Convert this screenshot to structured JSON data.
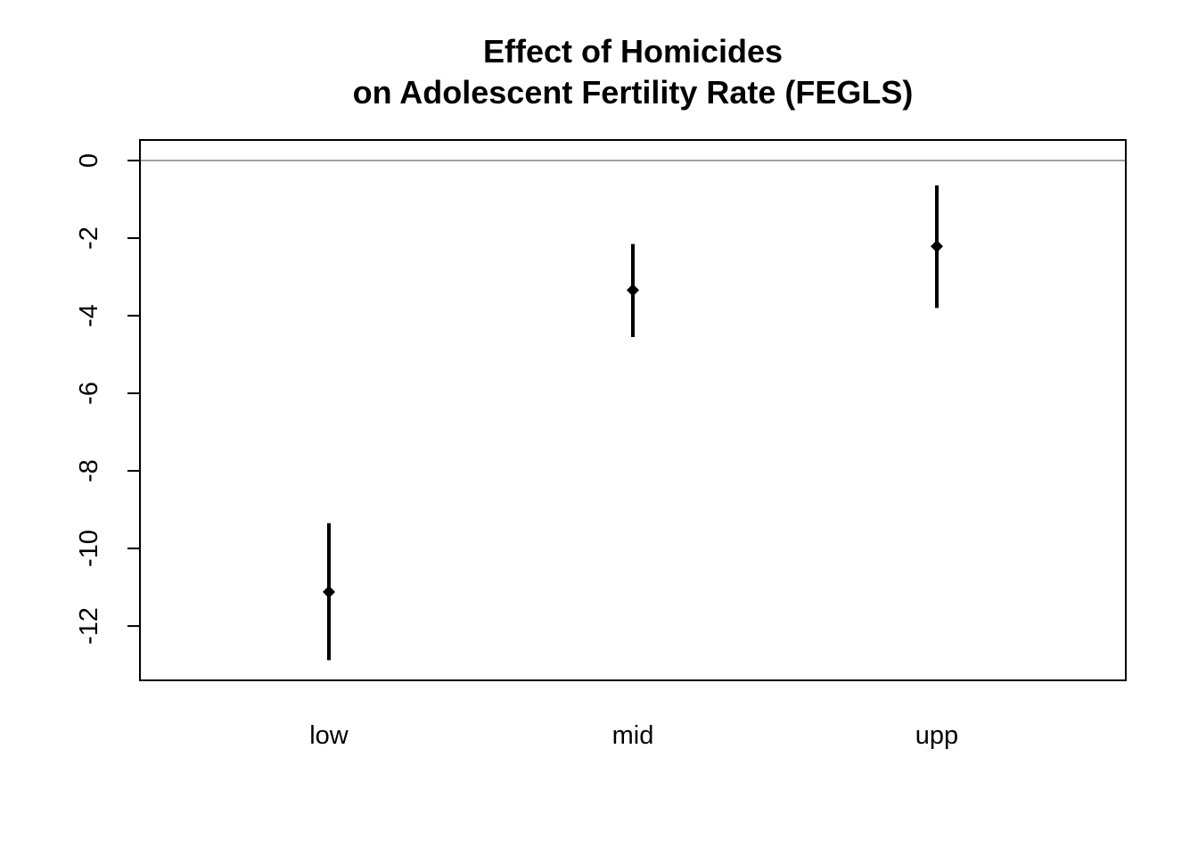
{
  "chart_data": {
    "type": "scatter",
    "title": [
      "Effect of Homicides",
      "on Adolescent Fertility Rate (FEGLS)"
    ],
    "xlabel": "",
    "ylabel": "",
    "categories": [
      "low",
      "mid",
      "upp"
    ],
    "estimates": [
      -11.12,
      -3.34,
      -2.21
    ],
    "lower": [
      -12.88,
      -4.55,
      -3.8
    ],
    "upper": [
      -9.35,
      -2.15,
      -0.64
    ],
    "ylim": [
      -13.4,
      0.53
    ],
    "yticks": [
      0,
      -2,
      -4,
      -6,
      -8,
      -10,
      -12
    ],
    "reference_line": 0,
    "grid": false,
    "legend": "none",
    "colors": {
      "marks": "#000000",
      "reference_line": "#808080",
      "frame": "#000000"
    }
  }
}
